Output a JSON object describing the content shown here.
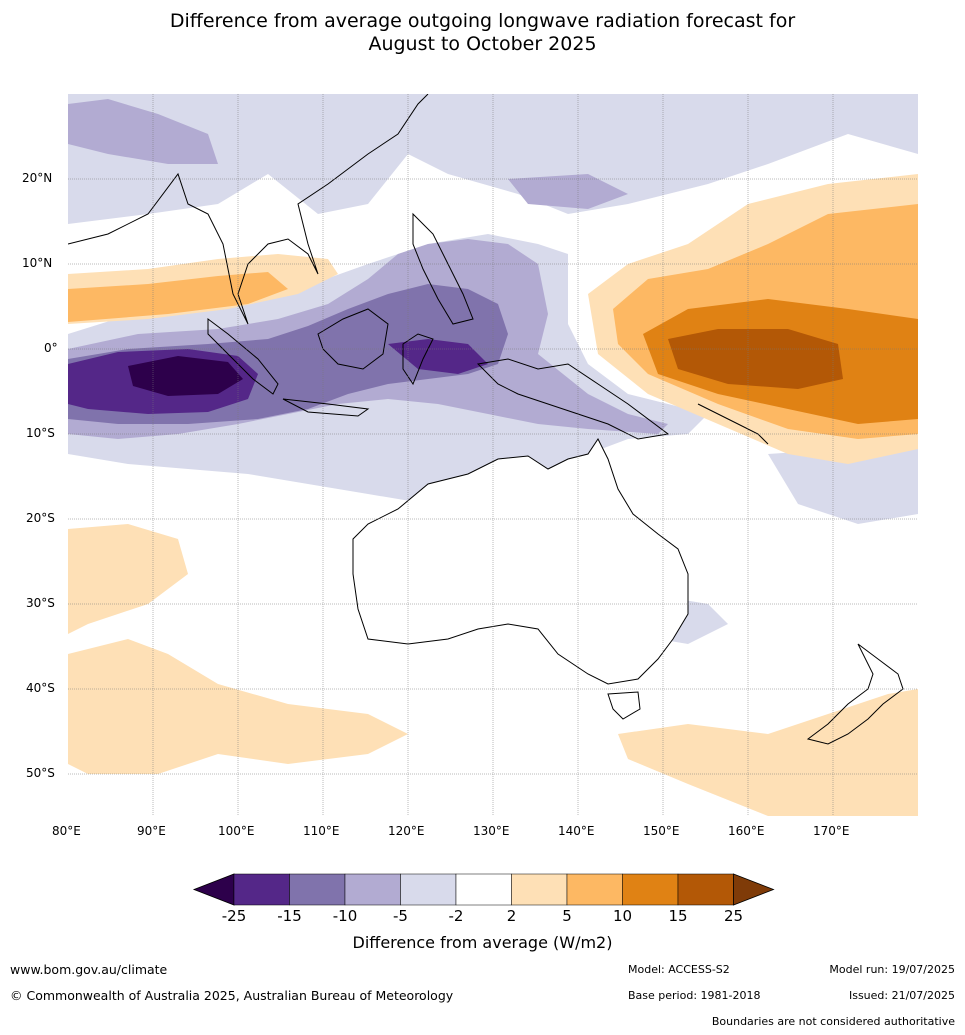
{
  "title_line1": "Difference from average outgoing longwave radiation forecast for",
  "title_line2": "August to October 2025",
  "map": {
    "lon_ticks": [
      "80°E",
      "90°E",
      "100°E",
      "110°E",
      "120°E",
      "130°E",
      "140°E",
      "150°E",
      "160°E",
      "170°E"
    ],
    "lat_ticks": [
      "20°N",
      "10°N",
      "0°",
      "10°S",
      "20°S",
      "30°S",
      "40°S",
      "50°S"
    ],
    "lon_range": [
      80,
      180
    ],
    "lat_range": [
      -55,
      30
    ]
  },
  "colorbar": {
    "ticks": [
      "-25",
      "-15",
      "-10",
      "-5",
      "-2",
      "2",
      "5",
      "10",
      "15",
      "25"
    ],
    "colors": [
      "#2d004b",
      "#542788",
      "#8073ac",
      "#b2abd2",
      "#d8daeb",
      "#ffffff",
      "#fee0b6",
      "#fdb863",
      "#e08214",
      "#b35806",
      "#7f3b08"
    ],
    "label": "Difference from average (W/m2)"
  },
  "footer": {
    "website": "www.bom.gov.au/climate",
    "copyright": "© Commonwealth of Australia 2025, Australian Bureau of Meteorology",
    "model": "Model: ACCESS-S2",
    "base_period": "Base period: 1981-2018",
    "model_run": "Model run: 19/07/2025",
    "issued": "Issued: 21/07/2025",
    "disclaimer": "Boundaries are not considered authoritative"
  }
}
